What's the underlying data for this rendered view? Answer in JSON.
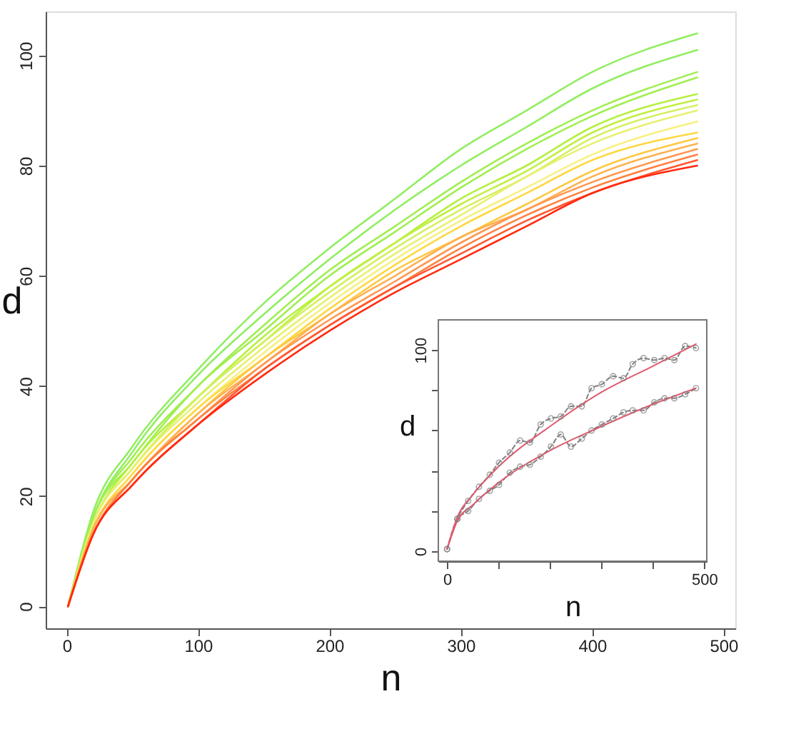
{
  "chart_data": [
    {
      "type": "line",
      "xlabel": "n",
      "ylabel": "d",
      "xlim": [
        -16,
        509
      ],
      "ylim": [
        -4,
        108
      ],
      "xticks": [
        0,
        100,
        200,
        300,
        400,
        500
      ],
      "yticks": [
        0,
        20,
        40,
        60,
        80,
        100
      ],
      "grid": false,
      "x": [
        1,
        20,
        50,
        100,
        150,
        200,
        250,
        300,
        350,
        400,
        480
      ],
      "series": [
        {
          "color": "#90ee60",
          "values": [
            0,
            17,
            29,
            43,
            55,
            65,
            74,
            83,
            90,
            97,
            104
          ]
        },
        {
          "color": "#90ee60",
          "values": [
            0,
            16,
            28,
            42,
            53,
            63,
            72,
            80,
            87,
            94,
            101
          ]
        },
        {
          "color": "#a0ee50",
          "values": [
            0,
            16,
            27,
            40,
            51,
            61,
            69,
            77,
            84,
            90,
            97
          ]
        },
        {
          "color": "#a0ee50",
          "values": [
            0,
            16,
            26,
            40,
            50,
            60,
            68,
            76,
            83,
            89,
            96
          ]
        },
        {
          "color": "#b4f040",
          "values": [
            0,
            15,
            26,
            38,
            49,
            58,
            66,
            74,
            80,
            87,
            93
          ]
        },
        {
          "color": "#c0f040",
          "values": [
            0,
            15,
            25,
            38,
            48,
            58,
            66,
            73,
            79,
            86,
            92
          ]
        },
        {
          "color": "#d4f060",
          "values": [
            0,
            15,
            25,
            38,
            48,
            57,
            65,
            72,
            78,
            85,
            91
          ]
        },
        {
          "color": "#e8f070",
          "values": [
            0,
            15,
            25,
            37,
            47,
            56,
            64,
            71,
            78,
            84,
            90
          ]
        },
        {
          "color": "#f8f080",
          "values": [
            0,
            14,
            24,
            36,
            46,
            55,
            63,
            70,
            76,
            82,
            88
          ]
        },
        {
          "color": "#ffd840",
          "values": [
            0,
            14,
            24,
            36,
            45,
            54,
            62,
            69,
            75,
            81,
            86
          ]
        },
        {
          "color": "#ffc840",
          "values": [
            0,
            14,
            23,
            35,
            45,
            53,
            61,
            67,
            73,
            79,
            85
          ]
        },
        {
          "color": "#ffb050",
          "values": [
            0,
            14,
            23,
            35,
            44,
            53,
            60,
            67,
            72,
            78,
            84
          ]
        },
        {
          "color": "#ff9850",
          "values": [
            0,
            13,
            23,
            34,
            44,
            52,
            59,
            66,
            72,
            77,
            83
          ]
        },
        {
          "color": "#ff8040",
          "values": [
            0,
            13,
            23,
            34,
            43,
            51,
            58,
            65,
            71,
            76,
            82
          ]
        },
        {
          "color": "#ff5830",
          "values": [
            0,
            13,
            22,
            33,
            43,
            51,
            58,
            64,
            70,
            75,
            81
          ]
        },
        {
          "color": "#ff2a10",
          "values": [
            0,
            13,
            22,
            33,
            42,
            50,
            57,
            63,
            69,
            75,
            80
          ]
        }
      ]
    },
    {
      "type": "line",
      "xlabel": "n",
      "ylabel": "d",
      "xlim": [
        -17,
        505
      ],
      "ylim": [
        -5,
        115
      ],
      "xticks": [
        0,
        {
          "value": 100,
          "label": null
        },
        {
          "value": 200,
          "label": null
        },
        {
          "value": 300,
          "label": null
        },
        {
          "value": 400,
          "label": null
        },
        500
      ],
      "yticks": [
        0,
        {
          "value": 20,
          "label": null
        },
        {
          "value": 40,
          "label": null
        },
        {
          "value": 60,
          "label": null
        },
        {
          "value": 80,
          "label": null
        },
        100
      ],
      "grid": false,
      "series": [
        {
          "color": "#808080",
          "marker": "circle",
          "line_style": "dashed",
          "x": [
            0,
            20,
            41,
            62,
            83,
            101,
            122,
            142,
            161,
            182,
            202,
            221,
            241,
            262,
            281,
            301,
            323,
            343,
            361,
            382,
            403,
            423,
            442,
            463,
            484
          ],
          "values": [
            1,
            16,
            25,
            32,
            38,
            44,
            49,
            55,
            54,
            63,
            66,
            67,
            72,
            72,
            81,
            83,
            87,
            86,
            93,
            96,
            95,
            96,
            95,
            102,
            101
          ]
        },
        {
          "color": "#808080",
          "marker": "circle",
          "line_style": "dashed",
          "x": [
            0,
            20,
            41,
            62,
            83,
            101,
            122,
            142,
            161,
            182,
            202,
            221,
            241,
            262,
            281,
            301,
            323,
            343,
            361,
            382,
            403,
            423,
            442,
            463,
            484
          ],
          "values": [
            1,
            16,
            20,
            26,
            30,
            33,
            39,
            42,
            43,
            47,
            52,
            58,
            52,
            56,
            60,
            63,
            66,
            69,
            70,
            70,
            74,
            76,
            76,
            78,
            81
          ]
        },
        {
          "color": "#e05a6e",
          "x": [
            0,
            20,
            50,
            100,
            200,
            300,
            400,
            484
          ],
          "values": [
            1,
            17,
            28,
            42,
            62,
            79,
            92,
            103
          ]
        },
        {
          "color": "#e05a6e",
          "x": [
            0,
            20,
            50,
            100,
            200,
            300,
            400,
            484
          ],
          "values": [
            1,
            15,
            23,
            34,
            50,
            62,
            73,
            81
          ]
        }
      ]
    }
  ]
}
